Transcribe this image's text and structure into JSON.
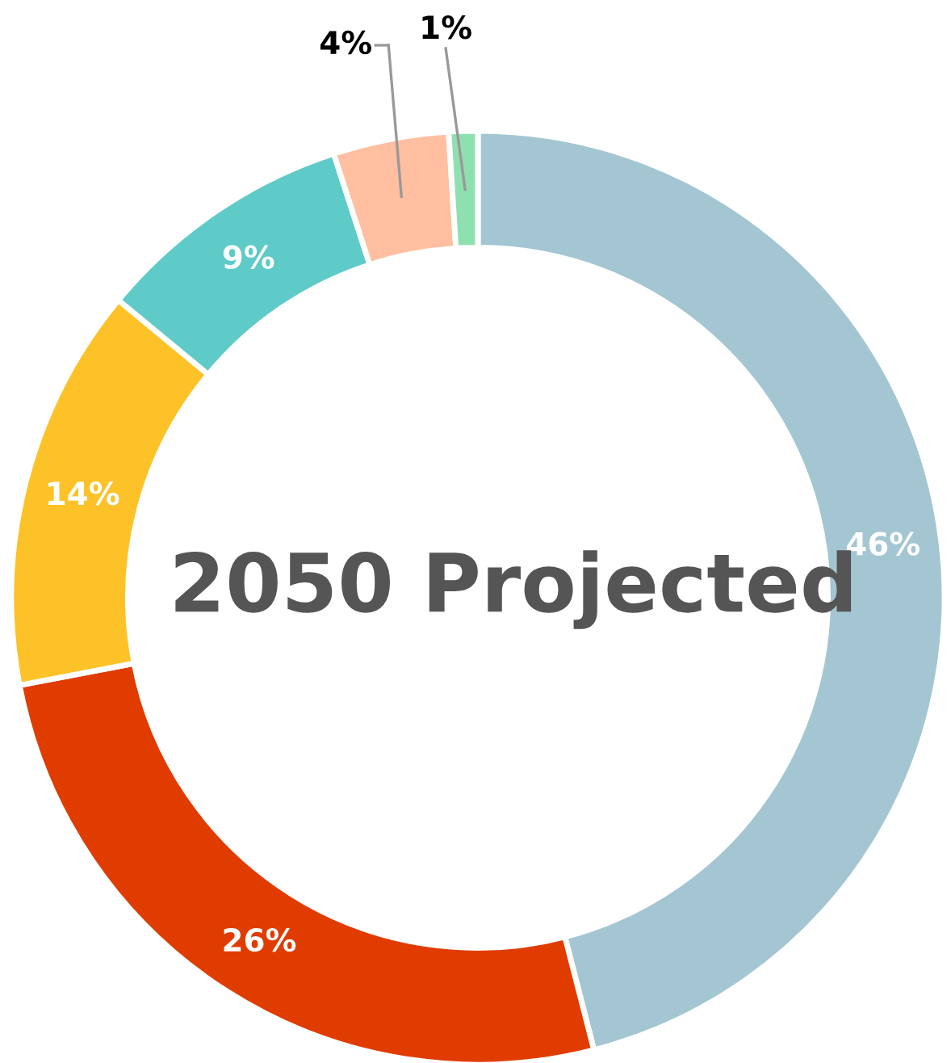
{
  "chart_data": {
    "type": "donut",
    "title": "2050 Projected",
    "categories": [
      null,
      null,
      null,
      null,
      null,
      null
    ],
    "values": [
      46,
      26,
      14,
      9,
      4,
      1
    ],
    "colors": [
      "#a3c6d2",
      "#e03c00",
      "#fdc228",
      "#5ecbc8",
      "#ffbfa0",
      "#8fe0b0"
    ],
    "value_labels": [
      "46%",
      "26%",
      "14%",
      "9%",
      "4%",
      "1%"
    ],
    "legend": false
  }
}
